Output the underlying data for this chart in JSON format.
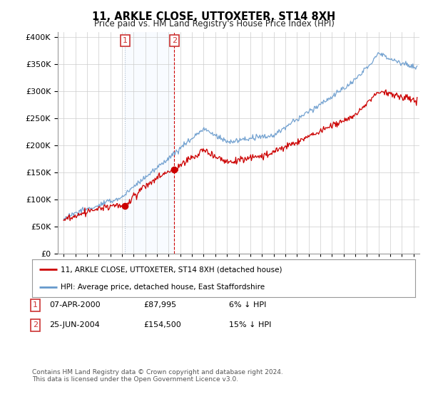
{
  "title": "11, ARKLE CLOSE, UTTOXETER, ST14 8XH",
  "subtitle": "Price paid vs. HM Land Registry's House Price Index (HPI)",
  "yvalues": [
    0,
    50000,
    100000,
    150000,
    200000,
    250000,
    300000,
    350000,
    400000
  ],
  "ylim": [
    0,
    410000
  ],
  "xlim_start": 1994.5,
  "xlim_end": 2025.5,
  "legend_line1": "11, ARKLE CLOSE, UTTOXETER, ST14 8XH (detached house)",
  "legend_line2": "HPI: Average price, detached house, East Staffordshire",
  "transaction1_label": "1",
  "transaction1_date": "07-APR-2000",
  "transaction1_price": "£87,995",
  "transaction1_hpi": "6% ↓ HPI",
  "transaction1_year": 2000.27,
  "transaction1_value": 87995,
  "transaction2_label": "2",
  "transaction2_date": "25-JUN-2004",
  "transaction2_price": "£154,500",
  "transaction2_hpi": "15% ↓ HPI",
  "transaction2_year": 2004.48,
  "transaction2_value": 154500,
  "red_color": "#cc0000",
  "blue_color": "#6699cc",
  "marker_box_color": "#cc3333",
  "highlight_color": "#ddeeff",
  "footnote": "Contains HM Land Registry data © Crown copyright and database right 2024.\nThis data is licensed under the Open Government Licence v3.0."
}
